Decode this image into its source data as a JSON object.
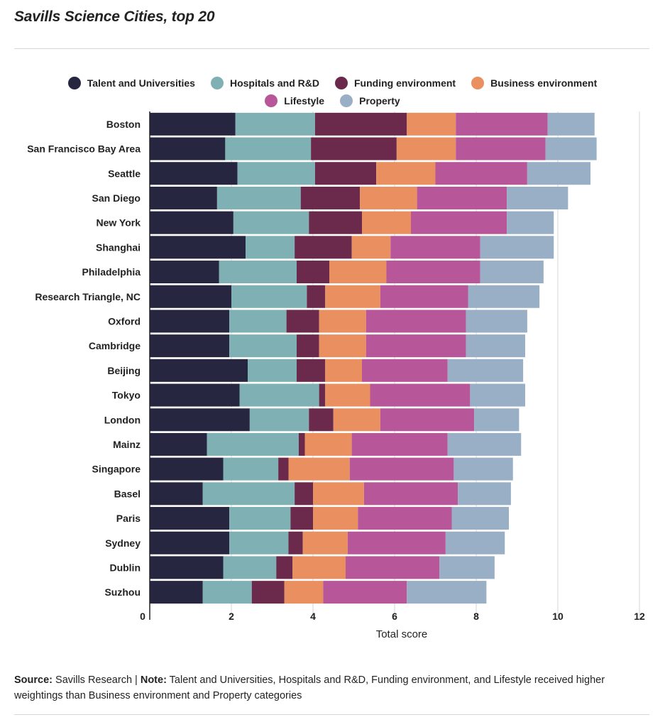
{
  "title": "Savills Science Cities, top 20",
  "colors": {
    "talent": "#272640",
    "hospitals": "#7fb0b4",
    "funding": "#6b2a4b",
    "business": "#ea8f5f",
    "lifestyle": "#b8569a",
    "property": "#98afc5"
  },
  "legend": [
    {
      "label": "Talent and Universities",
      "color": "#272640"
    },
    {
      "label": "Hospitals and R&D",
      "color": "#7fb0b4"
    },
    {
      "label": "Funding environment",
      "color": "#6b2a4b"
    },
    {
      "label": "Business environment",
      "color": "#ea8f5f"
    },
    {
      "label": "Lifestyle",
      "color": "#b8569a"
    },
    {
      "label": "Property",
      "color": "#98afc5"
    }
  ],
  "source": {
    "source_label": "Source:",
    "source_text": " Savills Research | ",
    "note_label": "Note:",
    "note_text": " Talent and Universities, Hospitals and R&D, Funding environment, and Lifestyle received higher weightings than Business environment and Property categories"
  },
  "chart_data": {
    "type": "bar",
    "orientation": "horizontal",
    "stacked": true,
    "title": "Savills Science Cities, top 20",
    "xlabel": "Total score",
    "ylabel": "",
    "xlim": [
      0,
      12
    ],
    "xticks": [
      0,
      2,
      4,
      6,
      8,
      10,
      12
    ],
    "grid": true,
    "legend_position": "top",
    "categories": [
      "Boston",
      "San Francisco Bay Area",
      "Seattle",
      "San Diego",
      "New York",
      "Shanghai",
      "Philadelphia",
      "Research Triangle, NC",
      "Oxford",
      "Cambridge",
      "Beijing",
      "Tokyo",
      "London",
      "Mainz",
      "Singapore",
      "Basel",
      "Paris",
      "Sydney",
      "Dublin",
      "Suzhou"
    ],
    "series": [
      {
        "name": "Talent and Universities",
        "color": "#272640",
        "values": [
          2.1,
          1.85,
          2.15,
          1.65,
          2.05,
          2.35,
          1.7,
          2.0,
          1.95,
          1.95,
          2.4,
          2.2,
          2.45,
          1.4,
          1.8,
          1.3,
          1.95,
          1.95,
          1.8,
          1.3
        ]
      },
      {
        "name": "Hospitals and R&D",
        "color": "#7fb0b4",
        "values": [
          1.95,
          2.1,
          1.9,
          2.05,
          1.85,
          1.2,
          1.9,
          1.85,
          1.4,
          1.65,
          1.2,
          1.95,
          1.45,
          2.25,
          1.35,
          2.25,
          1.5,
          1.45,
          1.3,
          1.2
        ]
      },
      {
        "name": "Funding environment",
        "color": "#6b2a4b",
        "values": [
          2.25,
          2.1,
          1.5,
          1.45,
          1.3,
          1.4,
          0.8,
          0.45,
          0.8,
          0.55,
          0.7,
          0.15,
          0.6,
          0.15,
          0.25,
          0.45,
          0.55,
          0.35,
          0.4,
          0.8
        ]
      },
      {
        "name": "Business environment",
        "color": "#ea8f5f",
        "values": [
          1.2,
          1.45,
          1.45,
          1.4,
          1.2,
          0.95,
          1.4,
          1.35,
          1.15,
          1.15,
          0.9,
          1.1,
          1.15,
          1.15,
          1.5,
          1.25,
          1.1,
          1.1,
          1.3,
          0.95
        ]
      },
      {
        "name": "Lifestyle",
        "color": "#b8569a",
        "values": [
          2.25,
          2.2,
          2.25,
          2.2,
          2.35,
          2.2,
          2.3,
          2.15,
          2.45,
          2.45,
          2.1,
          2.45,
          2.3,
          2.35,
          2.55,
          2.3,
          2.3,
          2.4,
          2.3,
          2.05
        ]
      },
      {
        "name": "Property",
        "color": "#98afc5",
        "values": [
          1.15,
          1.25,
          1.55,
          1.5,
          1.15,
          1.8,
          1.55,
          1.75,
          1.5,
          1.45,
          1.85,
          1.35,
          1.1,
          1.8,
          1.45,
          1.3,
          1.4,
          1.45,
          1.35,
          1.95
        ]
      }
    ]
  }
}
